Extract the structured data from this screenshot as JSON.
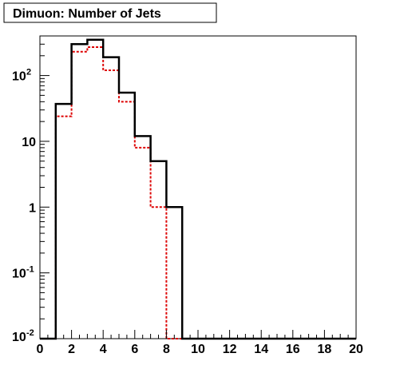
{
  "chart_data": {
    "type": "histogram",
    "title": "Dimuon: Number of Jets",
    "xlabel": "",
    "ylabel": "",
    "x_scale": "linear",
    "y_scale": "log",
    "xlim": [
      0,
      20
    ],
    "ylim": [
      0.01,
      400
    ],
    "x_ticks": [
      "0",
      "2",
      "4",
      "6",
      "8",
      "10",
      "12",
      "14",
      "16",
      "18",
      "20"
    ],
    "y_ticks": [
      {
        "value": 0.01,
        "base": "10",
        "exp": "-2"
      },
      {
        "value": 0.1,
        "base": "10",
        "exp": "-1"
      },
      {
        "value": 1,
        "base": "1",
        "exp": ""
      },
      {
        "value": 10,
        "base": "10",
        "exp": ""
      },
      {
        "value": 100,
        "base": "10",
        "exp": "2"
      }
    ],
    "bin_edges": [
      0,
      1,
      2,
      3,
      4,
      5,
      6,
      7,
      8,
      9,
      10,
      11,
      12,
      13,
      14,
      15,
      16,
      17,
      18,
      19,
      20
    ],
    "series": [
      {
        "style": "solid",
        "color": "#000000",
        "values": [
          0,
          37,
          300,
          350,
          190,
          55,
          12,
          5,
          1,
          0,
          0,
          0,
          0,
          0,
          0,
          0,
          0,
          0,
          0,
          0
        ]
      },
      {
        "style": "dashed",
        "color": "#dd0000",
        "values": [
          0,
          24,
          230,
          270,
          120,
          40,
          8,
          1,
          0,
          0,
          0,
          0,
          0,
          0,
          0,
          0,
          0,
          0,
          0,
          0
        ]
      }
    ],
    "grid": false,
    "legend": "none"
  }
}
